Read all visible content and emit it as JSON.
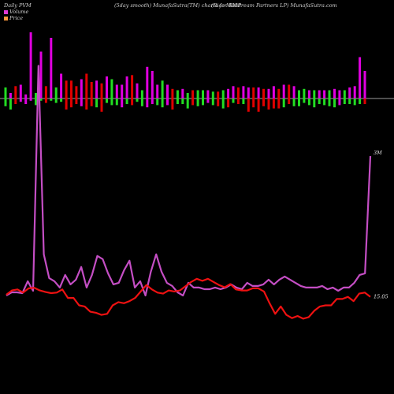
{
  "header": {
    "left": "Daily PVM",
    "center": "(5day smooth) MunafaSutra(TM) charts for RMP",
    "right": "(Rice   Midstream Partners LP) MunafaSutra.com"
  },
  "legend": [
    {
      "label": "Volume",
      "color": "#e23bd4"
    },
    {
      "label": "Price",
      "color": "#ff9a3c"
    }
  ],
  "chart_data": {
    "type": "line",
    "title": "(5day smooth) MunafaSutra(TM) charts for RMP",
    "xlabel": "",
    "ylabel": "",
    "grid": false,
    "legend_position": "top-left",
    "volume_bars": {
      "up_color": "#e000e0",
      "down_color": "#e00000",
      "green_color": "#22dd22",
      "above": [
        8,
        4,
        9,
        10,
        3,
        48,
        4,
        34,
        9,
        44,
        8,
        18,
        13,
        13,
        9,
        14,
        18,
        12,
        13,
        11,
        16,
        14,
        10,
        10,
        16,
        17,
        11,
        6,
        23,
        20,
        10,
        13,
        10,
        7,
        6,
        7,
        4,
        6,
        6,
        6,
        6,
        5,
        5,
        6,
        7,
        9,
        8,
        9,
        8,
        8,
        8,
        7,
        7,
        9,
        7,
        10,
        10,
        9,
        6,
        7,
        6,
        6,
        6,
        6,
        6,
        7,
        6,
        6,
        8,
        9,
        30,
        20
      ],
      "below": [
        7,
        10,
        5,
        3,
        5,
        2,
        6,
        2,
        4,
        2,
        4,
        3,
        10,
        8,
        5,
        7,
        10,
        7,
        8,
        12,
        4,
        6,
        6,
        8,
        5,
        6,
        3,
        7,
        8,
        5,
        6,
        8,
        6,
        10,
        5,
        5,
        9,
        6,
        7,
        6,
        4,
        6,
        7,
        9,
        8,
        4,
        5,
        5,
        12,
        8,
        12,
        7,
        10,
        9,
        9,
        8,
        5,
        7,
        7,
        4,
        6,
        8,
        5,
        6,
        7,
        8,
        6,
        5,
        5,
        6,
        5,
        5
      ],
      "above_type": [
        "g",
        "m",
        "r",
        "m",
        "m",
        "m",
        "g",
        "m",
        "r",
        "m",
        "g",
        "m",
        "r",
        "r",
        "r",
        "m",
        "r",
        "r",
        "m",
        "r",
        "m",
        "g",
        "m",
        "m",
        "m",
        "r",
        "m",
        "g",
        "m",
        "m",
        "m",
        "g",
        "m",
        "r",
        "g",
        "m",
        "g",
        "r",
        "g",
        "g",
        "m",
        "g",
        "r",
        "g",
        "m",
        "m",
        "r",
        "m",
        "m",
        "r",
        "m",
        "r",
        "m",
        "m",
        "r",
        "m",
        "r",
        "m",
        "g",
        "g",
        "m",
        "g",
        "m",
        "m",
        "g",
        "m",
        "m",
        "g",
        "m",
        "m",
        "m",
        "m"
      ],
      "below_type": [
        "g",
        "g",
        "r",
        "m",
        "m",
        "m",
        "g",
        "g",
        "r",
        "g",
        "g",
        "g",
        "r",
        "r",
        "r",
        "m",
        "r",
        "r",
        "g",
        "r",
        "g",
        "g",
        "g",
        "m",
        "g",
        "r",
        "g",
        "g",
        "m",
        "m",
        "g",
        "g",
        "m",
        "r",
        "g",
        "g",
        "g",
        "r",
        "g",
        "g",
        "m",
        "g",
        "r",
        "g",
        "r",
        "g",
        "r",
        "g",
        "r",
        "r",
        "r",
        "r",
        "r",
        "r",
        "r",
        "g",
        "r",
        "g",
        "g",
        "g",
        "g",
        "g",
        "g",
        "g",
        "g",
        "g",
        "m",
        "g",
        "g",
        "g",
        "g",
        "r"
      ]
    },
    "series": [
      {
        "name": "Volume",
        "color": "#c44ec4",
        "end_label": "3M",
        "values": [
          1,
          1.2,
          1.2,
          1.15,
          1.9,
          1.3,
          15.5,
          3.6,
          2.1,
          1.9,
          1.5,
          2.3,
          1.7,
          2,
          2.8,
          1.5,
          2.3,
          3.5,
          3.3,
          2.4,
          1.7,
          1.8,
          2.6,
          3.2,
          1.5,
          1.9,
          1,
          2.5,
          3.6,
          2.5,
          1.8,
          1.6,
          1.2,
          1,
          1.8,
          1.5,
          1.5,
          1.4,
          1.4,
          1.5,
          1.4,
          1.5,
          1.7,
          1.5,
          1.4,
          1.8,
          1.6,
          1.6,
          1.7,
          2,
          1.7,
          2,
          2.2,
          2,
          1.8,
          1.6,
          1.5,
          1.5,
          1.5,
          1.6,
          1.4,
          1.5,
          1.3,
          1.5,
          1.5,
          1.8,
          2.3,
          2.4,
          9.8
        ],
        "x": [
          0,
          1,
          2,
          3,
          4,
          5,
          6,
          7,
          8,
          9,
          10,
          11,
          12,
          13,
          14,
          15,
          16,
          17,
          18,
          19,
          20,
          21,
          22,
          23,
          24,
          25,
          26,
          27,
          28,
          29,
          30,
          31,
          32,
          33,
          34,
          35,
          36,
          37,
          38,
          39,
          40,
          41,
          42,
          43,
          44,
          45,
          46,
          47,
          48,
          49,
          50,
          51,
          52,
          53,
          54,
          55,
          56,
          57,
          58,
          59,
          60,
          61,
          62,
          63,
          64,
          65,
          66,
          67,
          68
        ]
      },
      {
        "name": "Price",
        "color": "#ee1111",
        "end_label": "15.05",
        "values": [
          15.2,
          15.6,
          15.7,
          15.4,
          15.8,
          15.85,
          15.6,
          15.45,
          15.35,
          15.4,
          15.7,
          14.9,
          14.9,
          14.2,
          14.1,
          13.6,
          13.5,
          13.3,
          13.4,
          14.2,
          14.5,
          14.4,
          14.6,
          14.9,
          15.5,
          16.1,
          15.7,
          15.4,
          15.3,
          15.6,
          15.5,
          15.6,
          16.0,
          16.4,
          16.7,
          16.5,
          16.7,
          16.4,
          16.1,
          15.9,
          16.2,
          15.7,
          15.6,
          15.6,
          15.8,
          15.8,
          15.5,
          14.4,
          13.4,
          14.1,
          13.3,
          13.0,
          13.2,
          12.95,
          13.1,
          13.7,
          14.1,
          14.2,
          14.2,
          14.8,
          14.8,
          15.0,
          14.6,
          15.3,
          15.4,
          15.0
        ],
        "x": [
          0,
          1,
          2,
          3,
          4,
          5,
          6,
          7,
          8,
          9,
          10,
          11,
          12,
          13,
          14,
          15,
          16,
          17,
          18,
          19,
          20,
          21,
          22,
          23,
          24,
          25,
          26,
          27,
          28,
          29,
          30,
          31,
          32,
          33,
          34,
          35,
          36,
          37,
          38,
          39,
          40,
          41,
          42,
          43,
          44,
          45,
          46,
          47,
          48,
          49,
          50,
          51,
          52,
          53,
          54,
          55,
          56,
          57,
          58,
          59,
          60,
          61,
          62,
          63,
          64,
          65
        ]
      }
    ]
  }
}
